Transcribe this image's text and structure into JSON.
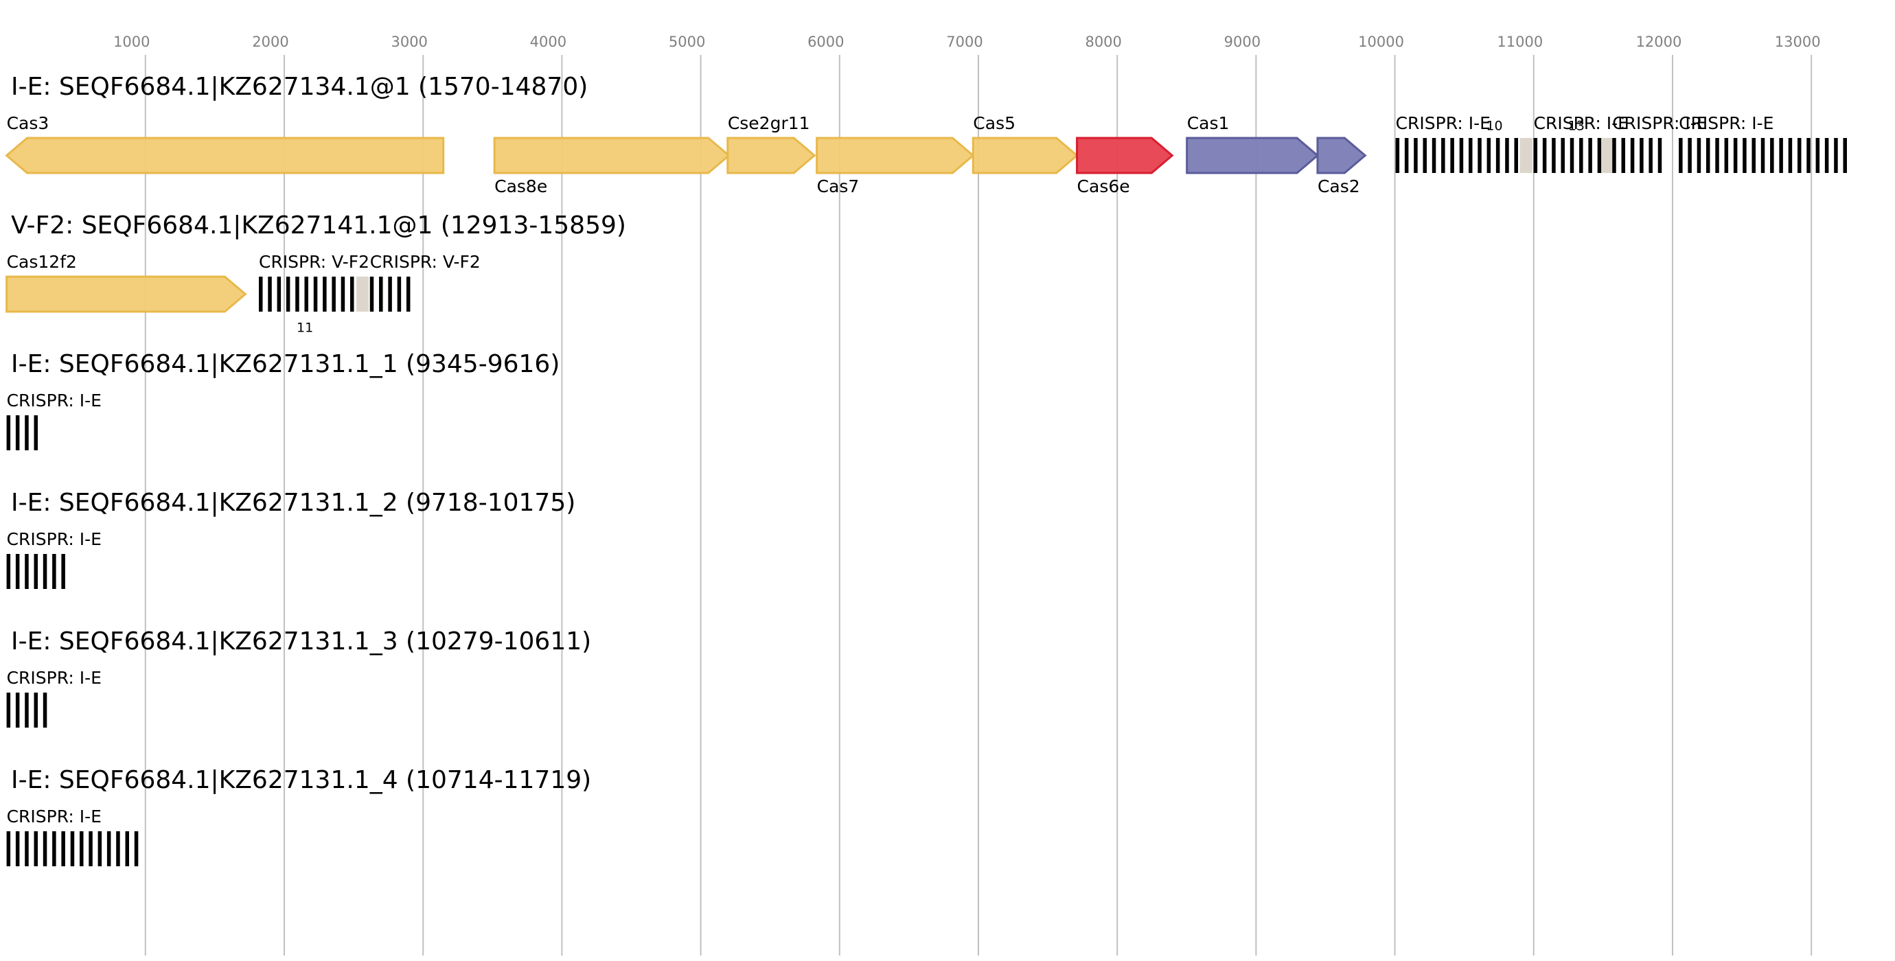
{
  "axis": {
    "lim": [
      0,
      13600
    ],
    "ticks": [
      1000,
      2000,
      3000,
      4000,
      5000,
      6000,
      7000,
      8000,
      9000,
      10000,
      11000,
      12000,
      13000
    ]
  },
  "tracks": [
    {
      "title": "I-E: SEQF6684.1|KZ627134.1@1 (1570-14870)",
      "features": [
        {
          "kind": "gene",
          "label": "Cas3",
          "start": 0,
          "end": 3146,
          "strand": "reverse",
          "color": "#f2cc74",
          "stroke": "#e8b84a",
          "label_pos": "above"
        },
        {
          "kind": "gene",
          "label": "Cas8e",
          "start": 3514,
          "end": 5203,
          "strand": "forward",
          "color": "#f2cc74",
          "stroke": "#e8b84a",
          "label_pos": "below"
        },
        {
          "kind": "gene",
          "label": "Cse2gr11",
          "start": 5194,
          "end": 5819,
          "strand": "forward",
          "color": "#f2cc74",
          "stroke": "#e8b84a",
          "label_pos": "above"
        },
        {
          "kind": "gene",
          "label": "Cas7",
          "start": 5836,
          "end": 6962,
          "strand": "forward",
          "color": "#f2cc74",
          "stroke": "#e8b84a",
          "label_pos": "below"
        },
        {
          "kind": "gene",
          "label": "Cas5",
          "start": 6962,
          "end": 7710,
          "strand": "forward",
          "color": "#f2cc74",
          "stroke": "#e8b84a",
          "label_pos": "above"
        },
        {
          "kind": "gene",
          "label": "Cas6e",
          "start": 7710,
          "end": 8396,
          "strand": "forward",
          "color": "#e8404f",
          "stroke": "#d81e30",
          "label_pos": "below"
        },
        {
          "kind": "gene",
          "label": "Cas1",
          "start": 8502,
          "end": 9443,
          "strand": "forward",
          "color": "#7b7db5",
          "stroke": "#5a5c9a",
          "label_pos": "above"
        },
        {
          "kind": "gene",
          "label": "Cas2",
          "start": 9443,
          "end": 9786,
          "strand": "forward",
          "color": "#7b7db5",
          "stroke": "#5a5c9a",
          "label_pos": "below"
        },
        {
          "kind": "crispr",
          "label": "CRISPR: I-E",
          "start": 10005,
          "end": 10990,
          "spacer": {
            "start": 10900,
            "end": 10990,
            "label": "10",
            "label_pos": "above"
          }
        },
        {
          "kind": "crispr",
          "label": "CRISPR: I-E",
          "start": 10999,
          "end": 11566,
          "spacer": {
            "start": 11490,
            "end": 11566,
            "label": "13",
            "label_pos": "above"
          }
        },
        {
          "kind": "crispr",
          "label": "CRISPR: I-E",
          "start": 11566,
          "end": 11975
        },
        {
          "kind": "crispr",
          "label": "CRISPR: I-E",
          "start": 12045,
          "end": 13295
        }
      ]
    },
    {
      "title": "V-F2: SEQF6684.1|KZ627141.1@1 (12913-15859)",
      "features": [
        {
          "kind": "gene",
          "label": "Cas12f2",
          "start": 0,
          "end": 1720,
          "strand": "forward",
          "color": "#f2cc74",
          "stroke": "#e8b84a",
          "label_pos": "above"
        },
        {
          "kind": "crispr",
          "label": "CRISPR: V-F2",
          "start": 1817,
          "end": 2608,
          "spacer": {
            "start": 2520,
            "end": 2608,
            "label": "11",
            "label_pos": "below"
          }
        },
        {
          "kind": "crispr",
          "label": "CRISPR: V-F2",
          "start": 2617,
          "end": 2952
        }
      ]
    },
    {
      "title": "I-E: SEQF6684.1|KZ627131.1_1 (9345-9616)",
      "features": [
        {
          "kind": "crispr",
          "label": "CRISPR: I-E",
          "start": 0,
          "end": 280
        }
      ]
    },
    {
      "title": "I-E: SEQF6684.1|KZ627131.1_2 (9718-10175)",
      "features": [
        {
          "kind": "crispr",
          "label": "CRISPR: I-E",
          "start": 0,
          "end": 466
        }
      ]
    },
    {
      "title": "I-E: SEQF6684.1|KZ627131.1_3 (10279-10611)",
      "features": [
        {
          "kind": "crispr",
          "label": "CRISPR: I-E",
          "start": 0,
          "end": 340
        }
      ]
    },
    {
      "title": "I-E: SEQF6684.1|KZ627131.1_4 (10714-11719)",
      "features": [
        {
          "kind": "crispr",
          "label": "CRISPR: I-E",
          "start": 0,
          "end": 1008
        }
      ]
    }
  ]
}
